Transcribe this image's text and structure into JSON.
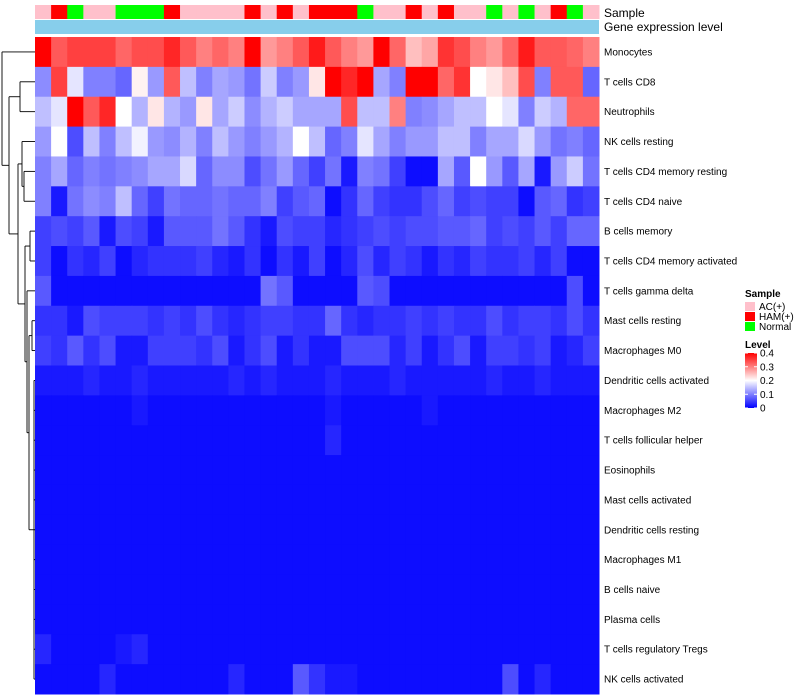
{
  "chart_data": {
    "type": "heatmap",
    "annotation_rows": [
      "Sample",
      "Gene expression level"
    ],
    "sample_groups": [
      "AC(+)",
      "HAM(+)",
      "Normal",
      "AC(+)",
      "AC(+)",
      "Normal",
      "Normal",
      "Normal",
      "HAM(+)",
      "AC(+)",
      "AC(+)",
      "AC(+)",
      "AC(+)",
      "HAM(+)",
      "AC(+)",
      "HAM(+)",
      "AC(+)",
      "HAM(+)",
      "HAM(+)",
      "HAM(+)",
      "Normal",
      "AC(+)",
      "AC(+)",
      "HAM(+)",
      "AC(+)",
      "HAM(+)",
      "AC(+)",
      "AC(+)",
      "Normal",
      "AC(+)",
      "Normal",
      "AC(+)",
      "HAM(+)",
      "Normal",
      "AC(+)"
    ],
    "rows": [
      "Monocytes",
      "T cells CD8",
      "Neutrophils",
      "NK cells resting",
      "T cells CD4 memory resting",
      "T cells CD4 naive",
      "B cells memory",
      "T cells CD4 memory activated",
      "T cells gamma delta",
      "Mast cells resting",
      "Macrophages M0",
      "Dendritic cells activated",
      "Macrophages M2",
      "T cells follicular helper",
      "Eosinophils",
      "Mast cells activated",
      "Dendritic cells resting",
      "Macrophages M1",
      "B cells naive",
      "Plasma cells",
      "T cells regulatory  Tregs",
      "NK cells activated"
    ],
    "values": [
      [
        0.4,
        0.33,
        0.35,
        0.35,
        0.35,
        0.32,
        0.34,
        0.34,
        0.37,
        0.33,
        0.3,
        0.32,
        0.3,
        0.4,
        0.28,
        0.3,
        0.33,
        0.38,
        0.33,
        0.3,
        0.28,
        0.4,
        0.32,
        0.25,
        0.27,
        0.36,
        0.34,
        0.3,
        0.28,
        0.32,
        0.38,
        0.33,
        0.33,
        0.32,
        0.3
      ],
      [
        0.11,
        0.35,
        0.18,
        0.1,
        0.1,
        0.08,
        0.21,
        0.12,
        0.33,
        0.15,
        0.1,
        0.13,
        0.12,
        0.09,
        0.16,
        0.1,
        0.12,
        0.22,
        0.41,
        0.37,
        0.4,
        0.13,
        0.1,
        0.41,
        0.41,
        0.32,
        0.36,
        0.2,
        0.22,
        0.25,
        0.34,
        0.1,
        0.33,
        0.33,
        0.08
      ],
      [
        0.15,
        0.18,
        0.4,
        0.33,
        0.37,
        0.2,
        0.14,
        0.22,
        0.14,
        0.12,
        0.22,
        0.13,
        0.16,
        0.11,
        0.14,
        0.16,
        0.13,
        0.13,
        0.13,
        0.34,
        0.15,
        0.15,
        0.3,
        0.1,
        0.11,
        0.13,
        0.15,
        0.15,
        0.2,
        0.18,
        0.1,
        0.16,
        0.14,
        0.32,
        0.32
      ],
      [
        0.12,
        0.2,
        0.06,
        0.15,
        0.1,
        0.15,
        0.19,
        0.12,
        0.11,
        0.14,
        0.1,
        0.15,
        0.12,
        0.1,
        0.12,
        0.14,
        0.2,
        0.15,
        0.08,
        0.1,
        0.18,
        0.13,
        0.1,
        0.12,
        0.12,
        0.15,
        0.15,
        0.1,
        0.13,
        0.13,
        0.17,
        0.12,
        0.09,
        0.1,
        0.08
      ],
      [
        0.1,
        0.13,
        0.08,
        0.1,
        0.09,
        0.1,
        0.11,
        0.13,
        0.13,
        0.17,
        0.08,
        0.11,
        0.11,
        0.06,
        0.09,
        0.12,
        0.08,
        0.05,
        0.09,
        0.02,
        0.1,
        0.09,
        0.05,
        0.01,
        0.01,
        0.13,
        0.07,
        0.2,
        0.12,
        0.07,
        0.13,
        0.02,
        0.12,
        0.16,
        0.09
      ],
      [
        0.1,
        0.02,
        0.09,
        0.11,
        0.1,
        0.15,
        0.08,
        0.05,
        0.09,
        0.08,
        0.08,
        0.09,
        0.08,
        0.08,
        0.1,
        0.05,
        0.07,
        0.08,
        0.01,
        0.04,
        0.08,
        0.05,
        0.04,
        0.04,
        0.06,
        0.08,
        0.05,
        0.06,
        0.05,
        0.05,
        0.01,
        0.07,
        0.08,
        0.04,
        0.05
      ],
      [
        0.05,
        0.06,
        0.05,
        0.07,
        0.02,
        0.06,
        0.05,
        0.02,
        0.07,
        0.07,
        0.07,
        0.09,
        0.07,
        0.04,
        0.02,
        0.06,
        0.05,
        0.05,
        0.03,
        0.04,
        0.05,
        0.06,
        0.05,
        0.06,
        0.06,
        0.07,
        0.07,
        0.08,
        0.05,
        0.06,
        0.05,
        0.07,
        0.05,
        0.08,
        0.08
      ],
      [
        0.05,
        0.01,
        0.04,
        0.03,
        0.05,
        0.01,
        0.03,
        0.04,
        0.04,
        0.04,
        0.05,
        0.03,
        0.02,
        0.04,
        0.01,
        0.04,
        0.02,
        0.05,
        0.01,
        0.03,
        0.06,
        0.03,
        0.05,
        0.04,
        0.02,
        0.04,
        0.03,
        0.05,
        0.04,
        0.04,
        0.05,
        0.03,
        0.05,
        0.01,
        0.01
      ],
      [
        0.07,
        0.01,
        0.01,
        0.01,
        0.01,
        0.01,
        0.01,
        0.01,
        0.01,
        0.01,
        0.01,
        0.01,
        0.01,
        0.01,
        0.09,
        0.07,
        0.01,
        0.01,
        0.01,
        0.01,
        0.07,
        0.06,
        0.01,
        0.01,
        0.01,
        0.01,
        0.01,
        0.01,
        0.01,
        0.01,
        0.01,
        0.01,
        0.01,
        0.06,
        0.01
      ],
      [
        0.04,
        0.04,
        0.02,
        0.06,
        0.05,
        0.05,
        0.05,
        0.04,
        0.05,
        0.04,
        0.06,
        0.04,
        0.03,
        0.04,
        0.05,
        0.05,
        0.04,
        0.04,
        0.08,
        0.04,
        0.03,
        0.04,
        0.04,
        0.05,
        0.04,
        0.05,
        0.04,
        0.04,
        0.06,
        0.04,
        0.05,
        0.05,
        0.04,
        0.06,
        0.04
      ],
      [
        0.05,
        0.04,
        0.07,
        0.04,
        0.06,
        0.02,
        0.02,
        0.05,
        0.05,
        0.05,
        0.04,
        0.06,
        0.02,
        0.04,
        0.06,
        0.02,
        0.04,
        0.02,
        0.02,
        0.06,
        0.06,
        0.06,
        0.03,
        0.05,
        0.02,
        0.04,
        0.06,
        0.02,
        0.05,
        0.05,
        0.04,
        0.05,
        0.02,
        0.03,
        0.05
      ],
      [
        0.02,
        0.02,
        0.02,
        0.03,
        0.02,
        0.02,
        0.03,
        0.02,
        0.02,
        0.02,
        0.02,
        0.02,
        0.03,
        0.02,
        0.03,
        0.02,
        0.02,
        0.02,
        0.03,
        0.02,
        0.02,
        0.02,
        0.03,
        0.02,
        0.02,
        0.02,
        0.02,
        0.02,
        0.03,
        0.02,
        0.02,
        0.03,
        0.02,
        0.02,
        0.02
      ],
      [
        0.01,
        0.01,
        0.01,
        0.01,
        0.01,
        0.01,
        0.02,
        0.01,
        0.01,
        0.01,
        0.01,
        0.01,
        0.01,
        0.01,
        0.01,
        0.01,
        0.01,
        0.01,
        0.02,
        0.01,
        0.01,
        0.01,
        0.01,
        0.01,
        0.02,
        0.01,
        0.01,
        0.01,
        0.01,
        0.01,
        0.01,
        0.01,
        0.01,
        0.01,
        0.01
      ],
      [
        0.01,
        0.01,
        0.01,
        0.01,
        0.01,
        0.01,
        0.01,
        0.01,
        0.01,
        0.01,
        0.01,
        0.01,
        0.01,
        0.01,
        0.01,
        0.01,
        0.01,
        0.01,
        0.03,
        0.01,
        0.01,
        0.01,
        0.01,
        0.01,
        0.01,
        0.01,
        0.01,
        0.01,
        0.01,
        0.01,
        0.01,
        0.01,
        0.01,
        0.01,
        0.01
      ],
      [
        0.01,
        0.01,
        0.01,
        0.01,
        0.01,
        0.01,
        0.01,
        0.01,
        0.01,
        0.01,
        0.01,
        0.01,
        0.01,
        0.01,
        0.01,
        0.01,
        0.01,
        0.01,
        0.01,
        0.01,
        0.01,
        0.01,
        0.01,
        0.01,
        0.01,
        0.01,
        0.01,
        0.01,
        0.01,
        0.01,
        0.01,
        0.01,
        0.01,
        0.01,
        0.01
      ],
      [
        0.01,
        0.01,
        0.01,
        0.01,
        0.01,
        0.01,
        0.01,
        0.01,
        0.01,
        0.01,
        0.01,
        0.01,
        0.01,
        0.01,
        0.01,
        0.01,
        0.01,
        0.01,
        0.01,
        0.01,
        0.01,
        0.01,
        0.01,
        0.01,
        0.01,
        0.01,
        0.01,
        0.01,
        0.01,
        0.01,
        0.01,
        0.01,
        0.01,
        0.01,
        0.01
      ],
      [
        0.01,
        0.01,
        0.01,
        0.01,
        0.01,
        0.01,
        0.01,
        0.01,
        0.01,
        0.01,
        0.01,
        0.01,
        0.01,
        0.01,
        0.01,
        0.01,
        0.01,
        0.01,
        0.01,
        0.01,
        0.01,
        0.01,
        0.01,
        0.01,
        0.01,
        0.01,
        0.01,
        0.01,
        0.01,
        0.01,
        0.01,
        0.01,
        0.01,
        0.01,
        0.01
      ],
      [
        0.01,
        0.01,
        0.01,
        0.01,
        0.01,
        0.01,
        0.01,
        0.01,
        0.01,
        0.01,
        0.01,
        0.01,
        0.01,
        0.01,
        0.01,
        0.01,
        0.01,
        0.01,
        0.01,
        0.01,
        0.01,
        0.01,
        0.01,
        0.01,
        0.01,
        0.01,
        0.01,
        0.01,
        0.01,
        0.01,
        0.01,
        0.01,
        0.01,
        0.01,
        0.01
      ],
      [
        0.01,
        0.01,
        0.01,
        0.01,
        0.01,
        0.01,
        0.01,
        0.01,
        0.01,
        0.01,
        0.01,
        0.01,
        0.01,
        0.01,
        0.01,
        0.01,
        0.01,
        0.01,
        0.01,
        0.01,
        0.01,
        0.01,
        0.01,
        0.01,
        0.01,
        0.01,
        0.01,
        0.01,
        0.01,
        0.01,
        0.01,
        0.01,
        0.01,
        0.01,
        0.01
      ],
      [
        0.01,
        0.01,
        0.01,
        0.01,
        0.01,
        0.01,
        0.01,
        0.01,
        0.01,
        0.01,
        0.01,
        0.01,
        0.01,
        0.01,
        0.01,
        0.01,
        0.01,
        0.01,
        0.01,
        0.01,
        0.01,
        0.01,
        0.01,
        0.01,
        0.01,
        0.01,
        0.01,
        0.01,
        0.01,
        0.01,
        0.01,
        0.01,
        0.01,
        0.01,
        0.01
      ],
      [
        0.03,
        0.01,
        0.01,
        0.01,
        0.01,
        0.02,
        0.03,
        0.01,
        0.01,
        0.01,
        0.01,
        0.01,
        0.01,
        0.01,
        0.01,
        0.01,
        0.01,
        0.01,
        0.01,
        0.01,
        0.01,
        0.01,
        0.01,
        0.01,
        0.01,
        0.01,
        0.01,
        0.01,
        0.01,
        0.01,
        0.01,
        0.01,
        0.01,
        0.01,
        0.01
      ],
      [
        0.01,
        0.01,
        0.01,
        0.01,
        0.03,
        0.01,
        0.01,
        0.01,
        0.01,
        0.01,
        0.01,
        0.01,
        0.03,
        0.01,
        0.01,
        0.01,
        0.07,
        0.04,
        0.02,
        0.02,
        0.01,
        0.01,
        0.01,
        0.01,
        0.01,
        0.01,
        0.01,
        0.01,
        0.01,
        0.06,
        0.01,
        0.03,
        0.01,
        0.01,
        0.01
      ]
    ],
    "legend": {
      "sample_title": "Sample",
      "groups": [
        {
          "label": "AC(+)",
          "color": "#ffc0cb"
        },
        {
          "label": "HAM(+)",
          "color": "#ff0000"
        },
        {
          "label": "Normal",
          "color": "#00ff00"
        }
      ],
      "level_title": "Level",
      "level_ticks": [
        0.4,
        0.3,
        0.2,
        0.1,
        0
      ]
    },
    "color_scale": {
      "low": "#0000ff",
      "mid": "#ffffff",
      "high": "#ff0000",
      "min": 0,
      "mid_value": 0.2,
      "max": 0.4
    },
    "expression_bar_color": "#87ceeb"
  }
}
